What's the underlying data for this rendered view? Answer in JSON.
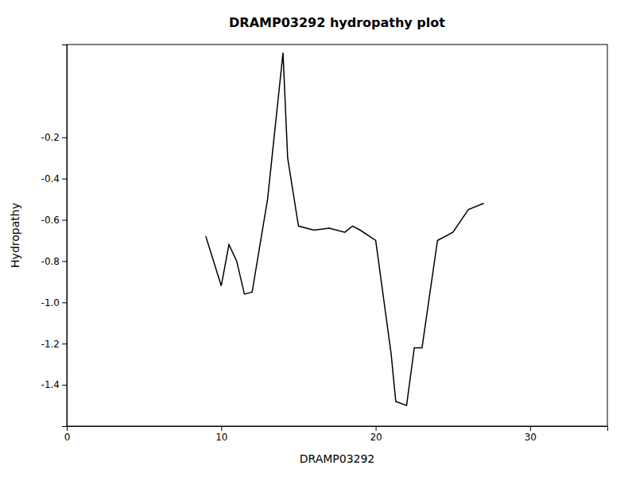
{
  "chart_data": {
    "type": "line",
    "title": "DRAMP03292 hydropathy plot",
    "xlabel": "DRAMP03292",
    "ylabel": "Hydropathy",
    "xlim": [
      0,
      35
    ],
    "ylim": [
      -1.6,
      0.25
    ],
    "xticks": [
      0,
      10,
      20,
      30
    ],
    "yticks": [
      -1.4,
      -1.2,
      {
        "value": -1.0,
        "label": "-1.0"
      },
      -0.8,
      -0.6,
      -0.4,
      -0.2
    ],
    "grid": false,
    "color": "#000000",
    "x": [
      9,
      10,
      10.5,
      11,
      11.5,
      12,
      13,
      14,
      14.3,
      15,
      16,
      17,
      18,
      18.5,
      19,
      20,
      21,
      21.3,
      22,
      22.5,
      23,
      24,
      25,
      26,
      27
    ],
    "values": [
      -0.68,
      -0.92,
      -0.72,
      -0.8,
      -0.96,
      -0.95,
      -0.5,
      0.21,
      -0.3,
      -0.63,
      -0.65,
      -0.64,
      -0.66,
      -0.63,
      -0.65,
      -0.7,
      -1.25,
      -1.48,
      -1.5,
      -1.22,
      -1.22,
      -0.7,
      -0.66,
      -0.55,
      -0.52
    ]
  }
}
